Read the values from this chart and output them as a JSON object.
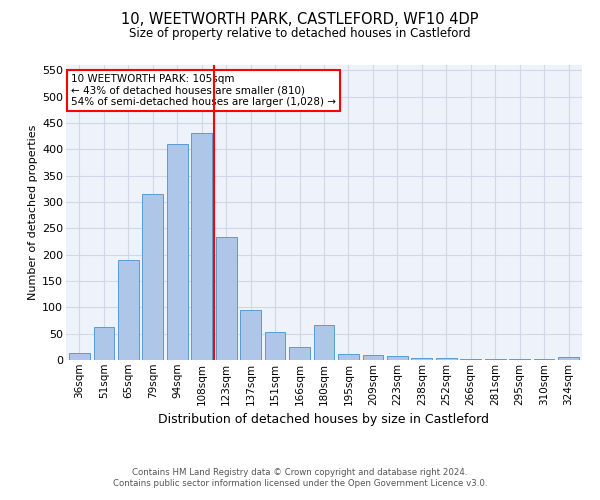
{
  "title": "10, WEETWORTH PARK, CASTLEFORD, WF10 4DP",
  "subtitle": "Size of property relative to detached houses in Castleford",
  "xlabel": "Distribution of detached houses by size in Castleford",
  "ylabel": "Number of detached properties",
  "footnote1": "Contains HM Land Registry data © Crown copyright and database right 2024.",
  "footnote2": "Contains public sector information licensed under the Open Government Licence v3.0.",
  "categories": [
    "36sqm",
    "51sqm",
    "65sqm",
    "79sqm",
    "94sqm",
    "108sqm",
    "123sqm",
    "137sqm",
    "151sqm",
    "166sqm",
    "180sqm",
    "195sqm",
    "209sqm",
    "223sqm",
    "238sqm",
    "252sqm",
    "266sqm",
    "281sqm",
    "295sqm",
    "310sqm",
    "324sqm"
  ],
  "values": [
    14,
    62,
    190,
    315,
    410,
    430,
    234,
    95,
    53,
    24,
    67,
    11,
    10,
    7,
    4,
    4,
    2,
    2,
    2,
    2,
    5
  ],
  "bar_color": "#aec6e8",
  "bar_edge_color": "#5b9bd5",
  "vline_x": 5.5,
  "vline_color": "red",
  "annotation_text": "10 WEETWORTH PARK: 105sqm\n← 43% of detached houses are smaller (810)\n54% of semi-detached houses are larger (1,028) →",
  "annotation_box_color": "white",
  "annotation_box_edge": "red",
  "ylim": [
    0,
    560
  ],
  "yticks": [
    0,
    50,
    100,
    150,
    200,
    250,
    300,
    350,
    400,
    450,
    500,
    550
  ],
  "grid_color": "#d0d8e8",
  "bg_color": "#eef2fa"
}
